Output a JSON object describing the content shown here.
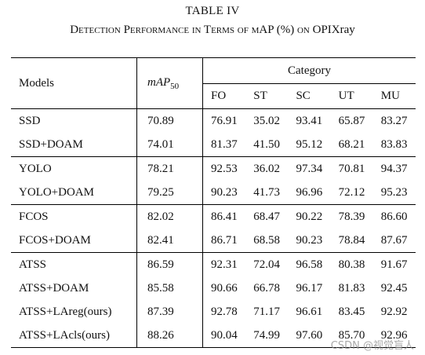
{
  "caption": {
    "number": "TABLE IV",
    "title_before": "Detection Performance in Terms of mAP (%) on ",
    "title_dataset": "OPIXray"
  },
  "header": {
    "models": "Models",
    "map_main": "mAP",
    "map_sub": "50",
    "category": "Category",
    "categories": [
      "FO",
      "ST",
      "SC",
      "UT",
      "MU"
    ]
  },
  "rows": [
    {
      "model": "SSD",
      "map": "70.89",
      "values": [
        "76.91",
        "35.02",
        "93.41",
        "65.87",
        "83.27"
      ]
    },
    {
      "model": "SSD+DOAM",
      "map": "74.01",
      "values": [
        "81.37",
        "41.50",
        "95.12",
        "68.21",
        "83.83"
      ]
    },
    {
      "model": "YOLO",
      "map": "78.21",
      "values": [
        "92.53",
        "36.02",
        "97.34",
        "70.81",
        "94.37"
      ]
    },
    {
      "model": "YOLO+DOAM",
      "map": "79.25",
      "values": [
        "90.23",
        "41.73",
        "96.96",
        "72.12",
        "95.23"
      ]
    },
    {
      "model": "FCOS",
      "map": "82.02",
      "values": [
        "86.41",
        "68.47",
        "90.22",
        "78.39",
        "86.60"
      ]
    },
    {
      "model": "FCOS+DOAM",
      "map": "82.41",
      "values": [
        "86.71",
        "68.58",
        "90.23",
        "78.84",
        "87.67"
      ]
    },
    {
      "model": "ATSS",
      "map": "86.59",
      "values": [
        "92.31",
        "72.04",
        "96.58",
        "80.38",
        "91.67"
      ]
    },
    {
      "model": "ATSS+DOAM",
      "map": "85.58",
      "values": [
        "90.66",
        "66.78",
        "96.17",
        "81.83",
        "92.45"
      ]
    },
    {
      "model": "ATSS+LAreg(ours)",
      "map": "87.39",
      "values": [
        "92.78",
        "71.17",
        "96.61",
        "83.45",
        "92.92"
      ]
    },
    {
      "model": "ATSS+LAcls(ours)",
      "map": "88.26",
      "values": [
        "90.04",
        "74.99",
        "97.60",
        "85.70",
        "92.96"
      ]
    }
  ],
  "watermark": "CSDN @视觉盲人"
}
